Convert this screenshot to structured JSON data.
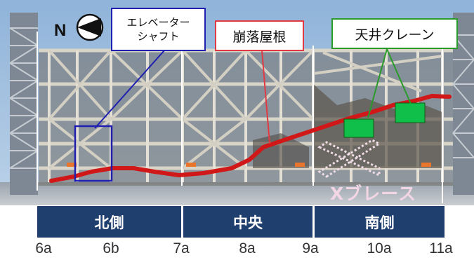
{
  "compass": {
    "label": "N"
  },
  "callouts": {
    "elevator_shaft": "エレベーター\nシャフト",
    "collapsed_roof": "崩落屋根",
    "overhead_crane": "天井クレーン"
  },
  "xbrace_label": "Xブレース",
  "sections": [
    {
      "label": "北側"
    },
    {
      "label": "中央"
    },
    {
      "label": "南側"
    }
  ],
  "grid_lines": [
    "6a",
    "6b",
    "7a",
    "8a",
    "9a",
    "10a",
    "11a"
  ],
  "colors": {
    "section_bar": "#1f3f6e",
    "roof_line": "#d01818",
    "elevator_box": "#2020b0",
    "crane_box": "#2a9a2a",
    "crane_block": "#0fbf4a"
  }
}
